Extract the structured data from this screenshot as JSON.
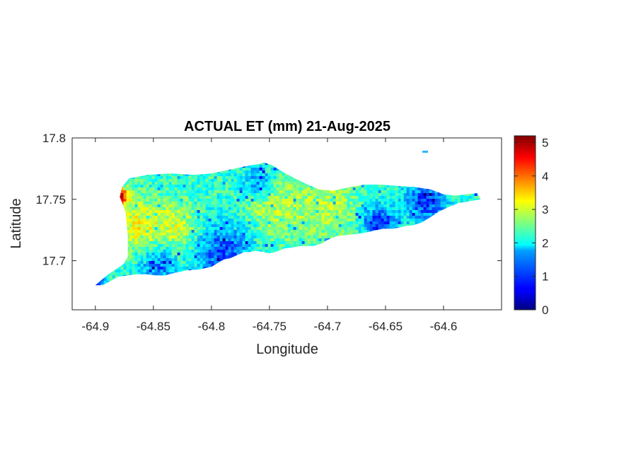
{
  "chart_data": {
    "type": "heatmap",
    "title": "ACTUAL ET (mm) 21-Aug-2025",
    "xlabel": "Longitude",
    "ylabel": "Latitude",
    "xlim": [
      -64.92,
      -64.55
    ],
    "ylim": [
      17.66,
      17.8
    ],
    "x_ticks": [
      -64.9,
      -64.85,
      -64.8,
      -64.75,
      -64.7,
      -64.65,
      -64.6
    ],
    "x_tick_labels": [
      "-64.9",
      "-64.85",
      "-64.8",
      "-64.75",
      "-64.7",
      "-64.65",
      "-64.6"
    ],
    "y_ticks": [
      17.7,
      17.75,
      17.8
    ],
    "y_tick_labels": [
      "17.7",
      "17.75",
      "17.8"
    ],
    "colormap": "jet",
    "clim": [
      0,
      5.2
    ],
    "colorbar_ticks": [
      0,
      1,
      2,
      3,
      4,
      5
    ],
    "colorbar_tick_labels": [
      "0",
      "1",
      "2",
      "3",
      "4",
      "5"
    ],
    "colorbar_placement": "right",
    "grid": false,
    "island_outline_lonlat": [
      [
        -64.9,
        17.68
      ],
      [
        -64.895,
        17.684
      ],
      [
        -64.89,
        17.688
      ],
      [
        -64.884,
        17.692
      ],
      [
        -64.876,
        17.697
      ],
      [
        -64.872,
        17.703
      ],
      [
        -64.872,
        17.72
      ],
      [
        -64.874,
        17.74
      ],
      [
        -64.879,
        17.752
      ],
      [
        -64.877,
        17.76
      ],
      [
        -64.871,
        17.767
      ],
      [
        -64.855,
        17.77
      ],
      [
        -64.835,
        17.771
      ],
      [
        -64.815,
        17.77
      ],
      [
        -64.8,
        17.771
      ],
      [
        -64.785,
        17.774
      ],
      [
        -64.77,
        17.777
      ],
      [
        -64.758,
        17.779
      ],
      [
        -64.755,
        17.78
      ],
      [
        -64.748,
        17.778
      ],
      [
        -64.738,
        17.772
      ],
      [
        -64.728,
        17.767
      ],
      [
        -64.717,
        17.762
      ],
      [
        -64.707,
        17.758
      ],
      [
        -64.695,
        17.757
      ],
      [
        -64.68,
        17.76
      ],
      [
        -64.668,
        17.762
      ],
      [
        -64.655,
        17.762
      ],
      [
        -64.64,
        17.761
      ],
      [
        -64.625,
        17.76
      ],
      [
        -64.611,
        17.758
      ],
      [
        -64.6,
        17.754
      ],
      [
        -64.59,
        17.753
      ],
      [
        -64.58,
        17.754
      ],
      [
        -64.571,
        17.755
      ],
      [
        -64.568,
        17.75
      ],
      [
        -64.574,
        17.749
      ],
      [
        -64.58,
        17.748
      ],
      [
        -64.587,
        17.747
      ],
      [
        -64.595,
        17.744
      ],
      [
        -64.604,
        17.74
      ],
      [
        -64.612,
        17.735
      ],
      [
        -64.619,
        17.731
      ],
      [
        -64.626,
        17.729
      ],
      [
        -64.634,
        17.728
      ],
      [
        -64.643,
        17.726
      ],
      [
        -64.652,
        17.726
      ],
      [
        -64.662,
        17.724
      ],
      [
        -64.672,
        17.722
      ],
      [
        -64.683,
        17.721
      ],
      [
        -64.692,
        17.72
      ],
      [
        -64.7,
        17.717
      ],
      [
        -64.705,
        17.714
      ],
      [
        -64.712,
        17.712
      ],
      [
        -64.722,
        17.712
      ],
      [
        -64.729,
        17.711
      ],
      [
        -64.737,
        17.71
      ],
      [
        -64.745,
        17.707
      ],
      [
        -64.75,
        17.706
      ],
      [
        -64.755,
        17.707
      ],
      [
        -64.762,
        17.708
      ],
      [
        -64.767,
        17.707
      ],
      [
        -64.772,
        17.707
      ],
      [
        -64.779,
        17.704
      ],
      [
        -64.784,
        17.702
      ],
      [
        -64.789,
        17.701
      ],
      [
        -64.793,
        17.699
      ],
      [
        -64.8,
        17.695
      ],
      [
        -64.81,
        17.693
      ],
      [
        -64.822,
        17.692
      ],
      [
        -64.832,
        17.69
      ],
      [
        -64.84,
        17.688
      ],
      [
        -64.848,
        17.688
      ],
      [
        -64.856,
        17.689
      ],
      [
        -64.864,
        17.689
      ],
      [
        -64.872,
        17.688
      ],
      [
        -64.88,
        17.687
      ],
      [
        -64.888,
        17.683
      ],
      [
        -64.894,
        17.68
      ]
    ],
    "field_features": [
      {
        "lon": -64.878,
        "lat": 17.752,
        "sigma": 0.005,
        "value": 5.0
      },
      {
        "lon": -64.86,
        "lat": 17.728,
        "sigma": 0.015,
        "value": 3.3
      },
      {
        "lon": -64.83,
        "lat": 17.725,
        "sigma": 0.015,
        "value": 3.1
      },
      {
        "lon": -64.745,
        "lat": 17.745,
        "sigma": 0.018,
        "value": 3.0
      },
      {
        "lon": -64.7,
        "lat": 17.745,
        "sigma": 0.018,
        "value": 2.9
      },
      {
        "lon": -64.79,
        "lat": 17.705,
        "sigma": 0.018,
        "value": 1.1
      },
      {
        "lon": -64.845,
        "lat": 17.695,
        "sigma": 0.012,
        "value": 1.4
      },
      {
        "lon": -64.9,
        "lat": 17.682,
        "sigma": 0.006,
        "value": 0.6
      },
      {
        "lon": -64.615,
        "lat": 17.748,
        "sigma": 0.012,
        "value": 0.9
      },
      {
        "lon": -64.655,
        "lat": 17.73,
        "sigma": 0.01,
        "value": 0.8
      },
      {
        "lon": -64.76,
        "lat": 17.765,
        "sigma": 0.01,
        "value": 1.5
      }
    ],
    "field_background_value": 2.2
  }
}
